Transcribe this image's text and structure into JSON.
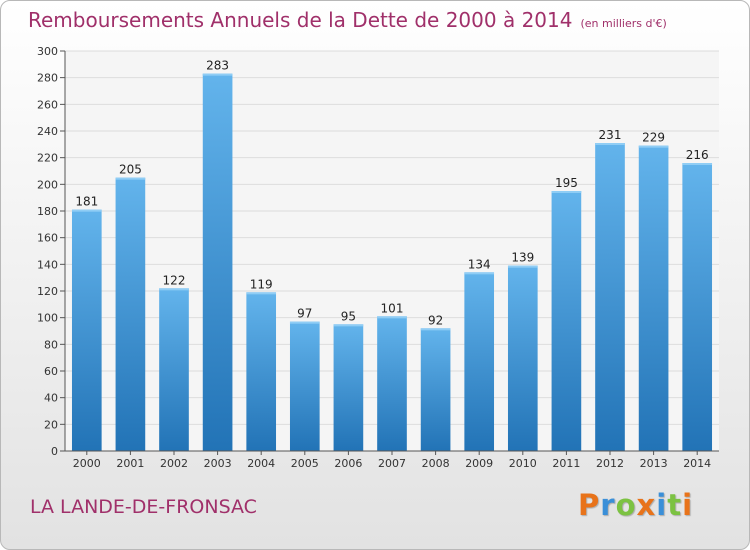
{
  "title": "Remboursements Annuels de la Dette de 2000 à 2014",
  "unit": "(en milliers d'€)",
  "commune": "LA LANDE-DE-FRONSAC",
  "brand": {
    "text": "Proxiti",
    "letter_colors": [
      "#e8731a",
      "#3a8fd8",
      "#7cc242",
      "#e8731a",
      "#3a8fd8",
      "#7cc242",
      "#e8731a"
    ]
  },
  "colors": {
    "title": "#a0306a",
    "bar_top": "#63b4ec",
    "bar_bottom": "#2273b6",
    "grid": "#dcdcdc"
  },
  "chart_data": {
    "type": "bar",
    "title": "Remboursements Annuels de la Dette de 2000 à 2014",
    "categories": [
      "2000",
      "2001",
      "2002",
      "2003",
      "2004",
      "2005",
      "2006",
      "2007",
      "2008",
      "2009",
      "2010",
      "2011",
      "2012",
      "2013",
      "2014"
    ],
    "values": [
      181,
      205,
      122,
      283,
      119,
      97,
      95,
      101,
      92,
      134,
      139,
      195,
      231,
      229,
      216
    ],
    "ylim": [
      0,
      300
    ],
    "yticks": [
      0,
      20,
      40,
      60,
      80,
      100,
      120,
      140,
      160,
      180,
      200,
      220,
      240,
      260,
      280,
      300
    ],
    "grid": true,
    "data_labels": true
  }
}
